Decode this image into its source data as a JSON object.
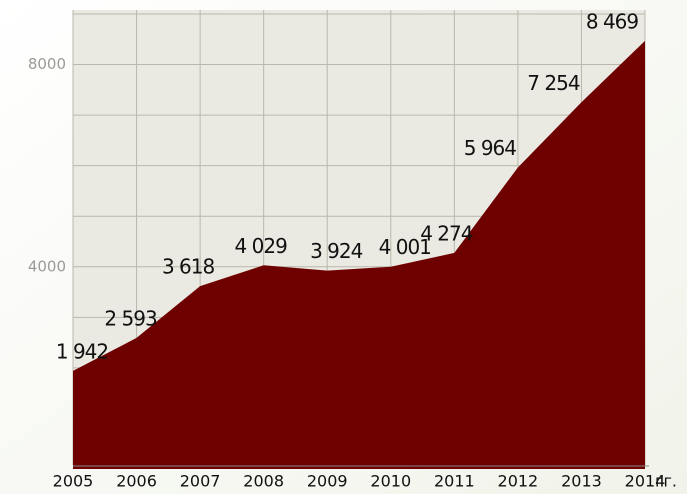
{
  "chart_data": {
    "type": "area",
    "categories": [
      "2005",
      "2006",
      "2007",
      "2008",
      "2009",
      "2010",
      "2011",
      "2012",
      "2013",
      "2014"
    ],
    "x_unit": "гг.",
    "values": [
      1942,
      2593,
      3618,
      4029,
      3924,
      4001,
      4274,
      5964,
      7254,
      8469
    ],
    "value_labels": [
      "1 942",
      "2 593",
      "3 618",
      "4 029",
      "3 924",
      "4 001",
      "4 274",
      "5 964",
      "7 254",
      "8 469"
    ],
    "color": "#6e0000",
    "ylim": [
      0,
      9000
    ],
    "yticks": [
      4000,
      8000
    ],
    "minor_yticks": [
      1000,
      2000,
      3000,
      5000,
      6000,
      7000,
      9000
    ],
    "grid": true
  }
}
